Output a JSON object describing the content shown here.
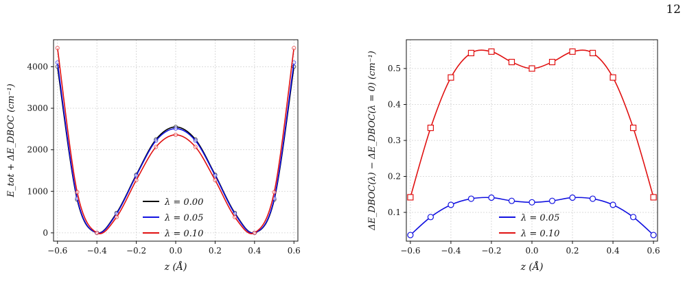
{
  "page_number": "12",
  "chart_data": [
    {
      "type": "line",
      "xlabel": "z (Å)",
      "ylabel": "E_tot + ΔE_DBOC (cm⁻¹)",
      "xlim": [
        -0.62,
        0.62
      ],
      "ylim": [
        -200,
        4650
      ],
      "xticks": [
        -0.6,
        -0.4,
        -0.2,
        0.0,
        0.2,
        0.4,
        0.6
      ],
      "xtick_labels": [
        "−0.6",
        "−0.4",
        "−0.2",
        "0.0",
        "0.2",
        "0.4",
        "0.6"
      ],
      "yticks": [
        0,
        1000,
        2000,
        3000,
        4000
      ],
      "ytick_labels": [
        "0",
        "1000",
        "2000",
        "3000",
        "4000"
      ],
      "grid": true,
      "legend": "lower-center",
      "x": [
        -0.6,
        -0.5,
        -0.4,
        -0.3,
        -0.2,
        -0.1,
        0.0,
        0.1,
        0.2,
        0.3,
        0.4,
        0.5,
        0.6
      ],
      "series": [
        {
          "name": "λ = 0.00",
          "color": "#000000",
          "values": [
            4000,
            800,
            0,
            480,
            1400,
            2250,
            2550,
            2250,
            1400,
            480,
            0,
            800,
            4000
          ]
        },
        {
          "name": "λ = 0.05",
          "color": "#1010e0",
          "values": [
            4100,
            830,
            0,
            460,
            1380,
            2220,
            2510,
            2220,
            1380,
            460,
            0,
            830,
            4100
          ]
        },
        {
          "name": "λ = 0.10",
          "color": "#e01010",
          "values": [
            4450,
            980,
            0,
            380,
            1270,
            2070,
            2360,
            2070,
            1270,
            380,
            0,
            980,
            4450
          ]
        }
      ]
    },
    {
      "type": "line",
      "xlabel": "z (Å)",
      "ylabel": "ΔE_DBOC(λ) − ΔE_DBOC(λ = 0) (cm⁻¹)",
      "xlim": [
        -0.62,
        0.62
      ],
      "ylim": [
        0.02,
        0.58
      ],
      "xticks": [
        -0.6,
        -0.4,
        -0.2,
        0.0,
        0.2,
        0.4,
        0.6
      ],
      "xtick_labels": [
        "−0.6",
        "−0.4",
        "−0.2",
        "0.0",
        "0.2",
        "0.4",
        "0.6"
      ],
      "yticks": [
        0.1,
        0.2,
        0.3,
        0.4,
        0.5
      ],
      "ytick_labels": [
        "0.1",
        "0.2",
        "0.3",
        "0.4",
        "0.5"
      ],
      "grid": true,
      "legend": "lower-center",
      "x": [
        -0.6,
        -0.5,
        -0.4,
        -0.3,
        -0.2,
        -0.1,
        0.0,
        0.1,
        0.2,
        0.3,
        0.4,
        0.5,
        0.6
      ],
      "series": [
        {
          "name": "λ = 0.05",
          "color": "#1010e0",
          "marker": "circle",
          "values": [
            0.037,
            0.087,
            0.121,
            0.138,
            0.141,
            0.132,
            0.128,
            0.132,
            0.141,
            0.138,
            0.121,
            0.087,
            0.037
          ]
        },
        {
          "name": "λ = 0.10",
          "color": "#e01010",
          "marker": "square",
          "values": [
            0.142,
            0.335,
            0.475,
            0.543,
            0.547,
            0.518,
            0.5,
            0.518,
            0.547,
            0.543,
            0.475,
            0.335,
            0.142
          ]
        }
      ]
    }
  ]
}
